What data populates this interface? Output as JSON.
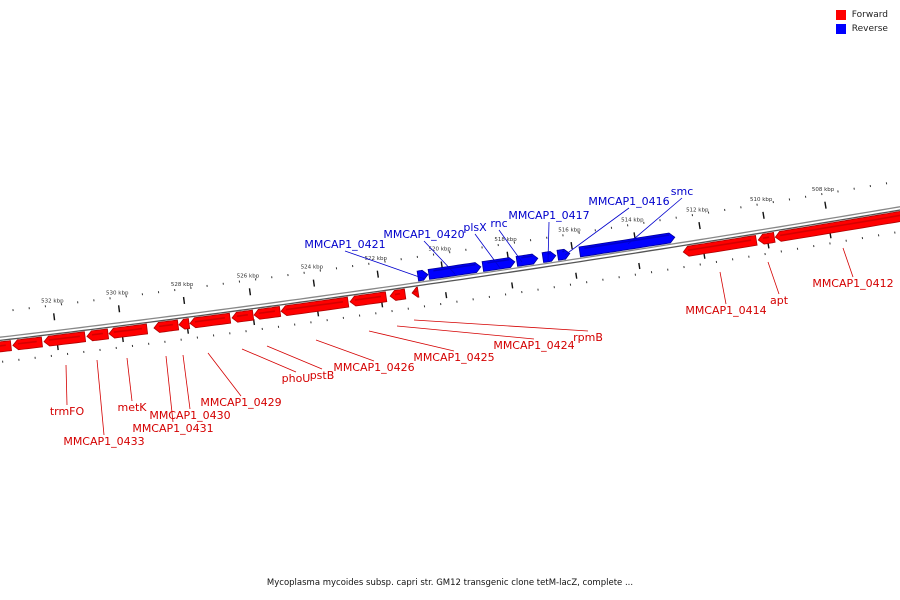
{
  "legend": {
    "items": [
      {
        "label": "Forward",
        "color": "#ff0000"
      },
      {
        "label": "Reverse",
        "color": "#0000ff"
      }
    ]
  },
  "caption": "Mycoplasma mycoides subsp. capri str. GM12 transgenic clone tetM-lacZ, complete ...",
  "colors": {
    "forward": "#ff0000",
    "forward_dark": "#b00000",
    "reverse": "#0000ff",
    "reverse_dark": "#00009a",
    "backbone": "#888888",
    "forward_label": "#d40000",
    "reverse_label": "#0000cc"
  },
  "genome_map": {
    "tick_labels": [
      "508 kbp",
      "510 kbp",
      "512 kbp",
      "514 kbp",
      "516 kbp",
      "518 kbp",
      "520 kbp",
      "522 kbp",
      "524 kbp",
      "526 kbp",
      "528 kbp",
      "530 kbp",
      "532 kbp"
    ],
    "forward_genes": [
      "MMCAP1_0412",
      "apt",
      "MMCAP1_0414",
      "rpmB",
      "MMCAP1_0424",
      "MMCAP1_0425",
      "MMCAP1_0426",
      "pstB",
      "phoU",
      "MMCAP1_0429",
      "MMCAP1_0430",
      "MMCAP1_0431",
      "metK",
      "MMCAP1_0433",
      "trmFO"
    ],
    "reverse_genes": [
      "smc",
      "MMCAP1_0416",
      "MMCAP1_0417",
      "rnc",
      "plsX",
      "MMCAP1_0420",
      "MMCAP1_0421"
    ]
  }
}
